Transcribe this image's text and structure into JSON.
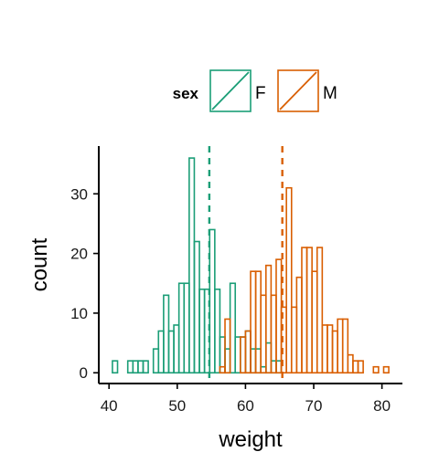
{
  "chart_data": {
    "type": "histogram",
    "xlabel": "weight",
    "ylabel": "count",
    "xlim": [
      38.5,
      83
    ],
    "ylim": [
      -1.8,
      38
    ],
    "xticks": [
      40,
      50,
      60,
      70,
      80
    ],
    "yticks": [
      0,
      10,
      20,
      30
    ],
    "bin_width": 0.75,
    "legend": {
      "title": "sex",
      "position": "top",
      "entries": [
        "F",
        "M"
      ]
    },
    "mean_lines": [
      {
        "series": "F",
        "x": 54.7
      },
      {
        "series": "M",
        "x": 65.4
      }
    ],
    "series": [
      {
        "name": "F",
        "color": "#1b9e77",
        "bins": [
          [
            39.0,
            0
          ],
          [
            39.75,
            0
          ],
          [
            40.5,
            2
          ],
          [
            41.25,
            0
          ],
          [
            42.0,
            0
          ],
          [
            42.75,
            2
          ],
          [
            43.5,
            2
          ],
          [
            44.25,
            2
          ],
          [
            45.0,
            2
          ],
          [
            45.75,
            0
          ],
          [
            46.5,
            4
          ],
          [
            47.25,
            7
          ],
          [
            48.0,
            13
          ],
          [
            48.75,
            7
          ],
          [
            49.5,
            8
          ],
          [
            50.25,
            15
          ],
          [
            51.0,
            15
          ],
          [
            51.75,
            36
          ],
          [
            52.5,
            22
          ],
          [
            53.25,
            14
          ],
          [
            54.0,
            14
          ],
          [
            54.75,
            24
          ],
          [
            55.5,
            14
          ],
          [
            56.25,
            6
          ],
          [
            57.0,
            4
          ],
          [
            57.75,
            15
          ],
          [
            58.5,
            6
          ],
          [
            59.25,
            6
          ],
          [
            60.0,
            7
          ],
          [
            60.75,
            4
          ],
          [
            61.5,
            4
          ],
          [
            62.25,
            1
          ],
          [
            63.0,
            5
          ],
          [
            63.75,
            2
          ],
          [
            64.5,
            2
          ],
          [
            65.25,
            0
          ],
          [
            66.0,
            0
          ],
          [
            66.75,
            0
          ],
          [
            67.5,
            0
          ],
          [
            68.25,
            0
          ],
          [
            69.0,
            0
          ],
          [
            69.75,
            0
          ],
          [
            70.5,
            0
          ],
          [
            71.25,
            0
          ],
          [
            72.0,
            0
          ],
          [
            72.75,
            0
          ],
          [
            73.5,
            0
          ],
          [
            74.25,
            0
          ],
          [
            75.0,
            0
          ],
          [
            75.75,
            0
          ],
          [
            76.5,
            0
          ],
          [
            77.25,
            0
          ],
          [
            78.0,
            0
          ],
          [
            78.75,
            0
          ],
          [
            79.5,
            0
          ],
          [
            80.25,
            0
          ],
          [
            81.0,
            0
          ]
        ]
      },
      {
        "name": "M",
        "color": "#d95f02",
        "bins": [
          [
            39.0,
            0
          ],
          [
            39.75,
            0
          ],
          [
            40.5,
            0
          ],
          [
            41.25,
            0
          ],
          [
            42.0,
            0
          ],
          [
            42.75,
            0
          ],
          [
            43.5,
            0
          ],
          [
            44.25,
            0
          ],
          [
            45.0,
            0
          ],
          [
            45.75,
            0
          ],
          [
            46.5,
            0
          ],
          [
            47.25,
            0
          ],
          [
            48.0,
            0
          ],
          [
            48.75,
            0
          ],
          [
            49.5,
            0
          ],
          [
            50.25,
            0
          ],
          [
            51.0,
            0
          ],
          [
            51.75,
            0
          ],
          [
            52.5,
            0
          ],
          [
            53.25,
            0
          ],
          [
            54.0,
            0
          ],
          [
            54.75,
            0
          ],
          [
            55.5,
            0
          ],
          [
            56.25,
            1
          ],
          [
            57.0,
            9
          ],
          [
            57.75,
            0
          ],
          [
            58.5,
            0
          ],
          [
            59.25,
            6
          ],
          [
            60.0,
            7
          ],
          [
            60.75,
            17
          ],
          [
            61.5,
            17
          ],
          [
            62.25,
            13
          ],
          [
            63.0,
            18
          ],
          [
            63.75,
            13
          ],
          [
            64.5,
            19
          ],
          [
            65.25,
            11
          ],
          [
            66.0,
            31
          ],
          [
            66.75,
            11
          ],
          [
            67.5,
            16
          ],
          [
            68.25,
            21
          ],
          [
            69.0,
            21
          ],
          [
            69.75,
            17
          ],
          [
            70.5,
            21
          ],
          [
            71.25,
            8
          ],
          [
            72.0,
            8
          ],
          [
            72.75,
            7
          ],
          [
            73.5,
            9
          ],
          [
            74.25,
            9
          ],
          [
            75.0,
            3
          ],
          [
            75.75,
            2
          ],
          [
            76.5,
            2
          ],
          [
            77.25,
            0
          ],
          [
            78.0,
            0
          ],
          [
            78.75,
            1
          ],
          [
            79.5,
            0
          ],
          [
            80.25,
            1
          ],
          [
            81.0,
            0
          ]
        ]
      }
    ]
  }
}
